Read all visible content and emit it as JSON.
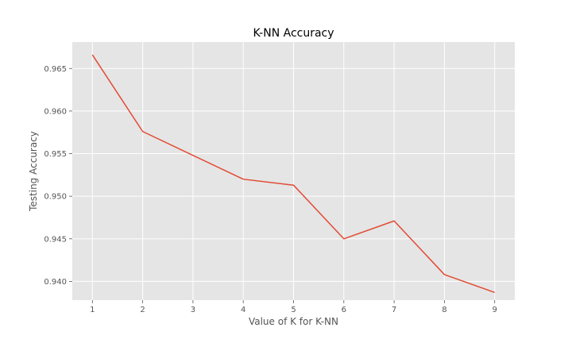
{
  "chart_data": {
    "type": "line",
    "title": "K-NN Accuracy",
    "xlabel": "Value of K for K-NN",
    "ylabel": "Testing Accuracy",
    "x": [
      1,
      2,
      3,
      4,
      5,
      6,
      7,
      8,
      9
    ],
    "xticks": [
      "1",
      "2",
      "3",
      "4",
      "5",
      "6",
      "7",
      "8",
      "9"
    ],
    "yticks": [
      0.94,
      0.945,
      0.95,
      0.955,
      0.96,
      0.965
    ],
    "ytick_labels": [
      "0.940",
      "0.945",
      "0.950",
      "0.955",
      "0.960",
      "0.965"
    ],
    "xlim": [
      0.6,
      9.4
    ],
    "ylim": [
      0.9378,
      0.9681
    ],
    "grid": true,
    "series": [
      {
        "values": [
          0.9666,
          0.9576,
          0.9548,
          0.952,
          0.9513,
          0.945,
          0.9471,
          0.9408,
          0.9387
        ],
        "color": "#E24A33"
      }
    ],
    "colors": {
      "plot_background": "#E5E5E5",
      "grid": "#FFFFFF",
      "tick": "#555555"
    }
  }
}
